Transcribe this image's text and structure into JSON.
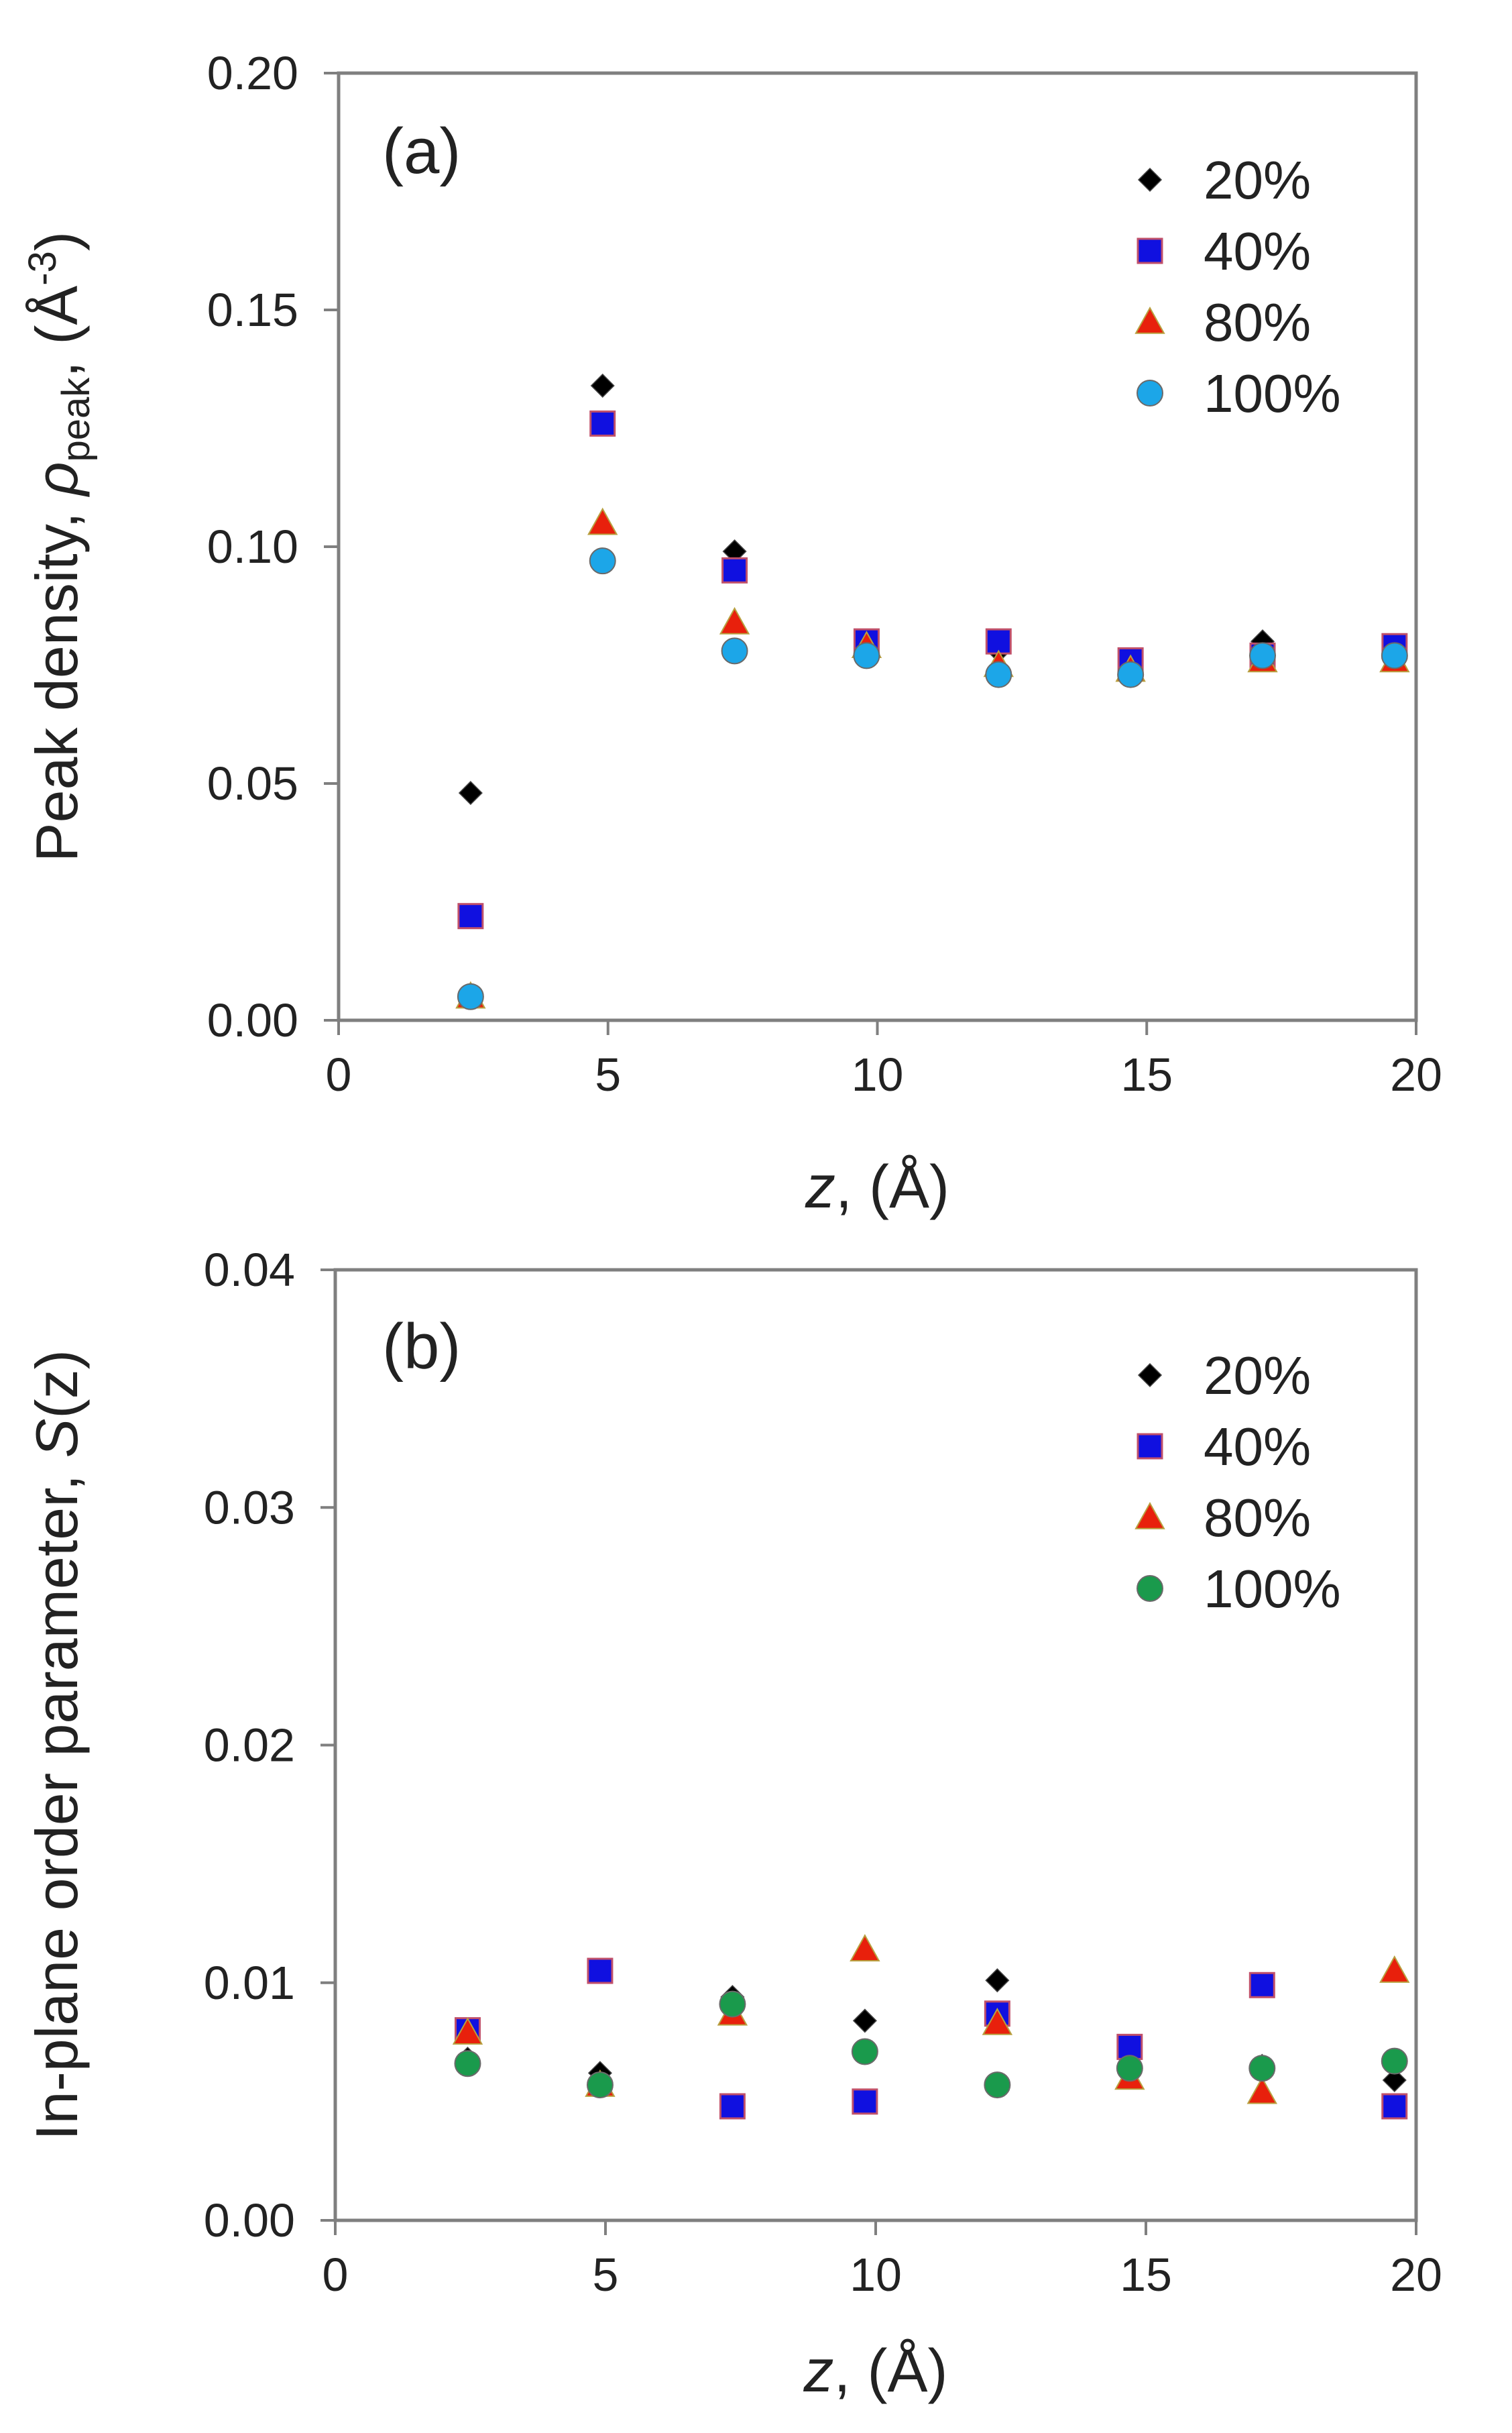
{
  "chart_data": [
    {
      "panel": "a",
      "type": "scatter",
      "panel_label": "(a)",
      "ylabel": "Peak density, ρpeak, (Å⁻³)",
      "ylabel_parts": [
        "Peak density, ",
        "ρ",
        "peak",
        ", (Å",
        "-3",
        ")"
      ],
      "xlabel_parts": [
        "z",
        ", (Å)"
      ],
      "xlim": [
        0,
        20
      ],
      "ylim": [
        0,
        0.2
      ],
      "x_ticks": [
        "0",
        "5",
        "10",
        "15",
        "20"
      ],
      "y_ticks": [
        "0.00",
        "0.05",
        "0.10",
        "0.15",
        "0.20"
      ],
      "legend_position": "top-right",
      "x": [
        2.45,
        4.9,
        7.35,
        9.8,
        12.25,
        14.7,
        17.15,
        19.6
      ],
      "series": [
        {
          "name": "20%",
          "marker": "diamond",
          "color": "#000000",
          "values": [
            0.048,
            0.134,
            0.099,
            0.08,
            0.078,
            0.076,
            0.08,
            0.079
          ]
        },
        {
          "name": "40%",
          "marker": "square",
          "color": "#1010e0",
          "values": [
            0.022,
            0.126,
            0.095,
            0.08,
            0.08,
            0.076,
            0.077,
            0.079
          ]
        },
        {
          "name": "80%",
          "marker": "triangle",
          "color": "#e8200c",
          "values": [
            0.005,
            0.105,
            0.084,
            0.079,
            0.075,
            0.074,
            0.076,
            0.076
          ]
        },
        {
          "name": "100%",
          "marker": "circle",
          "color": "#1ca6e8",
          "values": [
            0.005,
            0.097,
            0.078,
            0.077,
            0.073,
            0.073,
            0.077,
            0.077
          ]
        }
      ]
    },
    {
      "panel": "b",
      "type": "scatter",
      "panel_label": "(b)",
      "ylabel": "In-plane order parameter, S(z)",
      "ylabel_parts": [
        "In-plane order parameter, ",
        "S",
        "(z)"
      ],
      "xlabel_parts": [
        "z",
        ", (Å)"
      ],
      "xlim": [
        0,
        20
      ],
      "ylim": [
        0,
        0.04
      ],
      "x_ticks": [
        "0",
        "5",
        "10",
        "15",
        "20"
      ],
      "y_ticks": [
        "0.00",
        "0.01",
        "0.02",
        "0.03",
        "0.04"
      ],
      "legend_position": "top-right",
      "x": [
        2.45,
        4.9,
        7.35,
        9.8,
        12.25,
        14.7,
        17.15,
        19.6
      ],
      "series": [
        {
          "name": "20%",
          "marker": "diamond",
          "color": "#000000",
          "values": [
            0.0068,
            0.0062,
            0.0094,
            0.0084,
            0.0101,
            0.0069,
            0.0065,
            0.0059
          ]
        },
        {
          "name": "40%",
          "marker": "square",
          "color": "#1010e0",
          "values": [
            0.008,
            0.0105,
            0.0048,
            0.005,
            0.0087,
            0.0073,
            0.0099,
            0.0048
          ]
        },
        {
          "name": "80%",
          "marker": "triangle",
          "color": "#e8200c",
          "values": [
            0.0079,
            0.0057,
            0.0087,
            0.0114,
            0.0083,
            0.006,
            0.0054,
            0.0105
          ]
        },
        {
          "name": "100%",
          "marker": "circle",
          "color": "#1a9a4c",
          "values": [
            0.0066,
            0.0057,
            0.0091,
            0.0071,
            0.0057,
            0.0064,
            0.0064,
            0.0067
          ]
        }
      ]
    }
  ]
}
